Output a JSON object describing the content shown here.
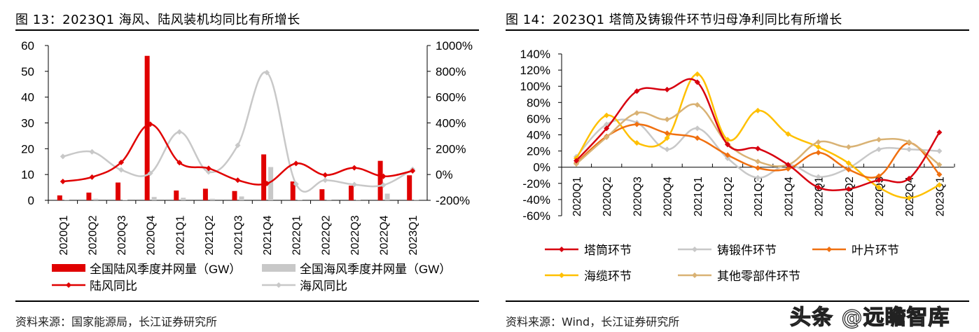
{
  "left": {
    "title": "图 13：2023Q1 海风、陆风装机均同比有所增长",
    "source": "资料来源：国家能源局，长江证券研究所"
  },
  "right": {
    "title": "图 14：2023Q1 塔筒及铸锻件环节归母净利同比有所增长",
    "source": "资料来源：Wind，长江证券研究所"
  },
  "watermark": "头条 @远瞻智库",
  "chart_data": [
    {
      "type": "bar+line",
      "categories": [
        "2020Q1",
        "2020Q2",
        "2020Q3",
        "2020Q4",
        "2021Q1",
        "2021Q2",
        "2021Q3",
        "2021Q4",
        "2022Q1",
        "2022Q2",
        "2022Q3",
        "2022Q4",
        "2023Q1"
      ],
      "ylim": [
        0,
        60
      ],
      "yticks": [
        "0",
        "10",
        "20",
        "30",
        "40",
        "50",
        "60"
      ],
      "y2lim": [
        -200,
        1000
      ],
      "y2ticks": [
        "-200%",
        "0%",
        "200%",
        "400%",
        "600%",
        "800%",
        "1000%"
      ],
      "legend_position": "bottom",
      "series": [
        {
          "name": "全国陆风季度并网量（GW）",
          "kind": "bar",
          "axis": "left",
          "color": "#e00000",
          "values": [
            1.9,
            3.0,
            6.9,
            56.0,
            3.8,
            4.5,
            3.6,
            17.8,
            7.3,
            4.3,
            5.7,
            15.3,
            9.7
          ]
        },
        {
          "name": "全国海风季度并网量（GW）",
          "kind": "bar",
          "axis": "left",
          "color": "#c8c8c8",
          "values": [
            0.1,
            0.6,
            0.2,
            1.3,
            1.0,
            0.6,
            1.5,
            12.9,
            0.1,
            0.3,
            0.1,
            2.6,
            0.3
          ]
        },
        {
          "name": "陆风同比",
          "kind": "line",
          "axis": "right",
          "color": "#e00000",
          "values": [
            -54,
            -20,
            94,
            390,
            92,
            48,
            -44,
            -70,
            86,
            -4,
            52,
            -14,
            28
          ]
        },
        {
          "name": "海风同比",
          "kind": "line",
          "axis": "right",
          "color": "#c8c8c8",
          "values": [
            140,
            176,
            36,
            10,
            330,
            20,
            226,
            790,
            -74,
            -44,
            -78,
            -82,
            40
          ]
        }
      ]
    },
    {
      "type": "line",
      "categories": [
        "2020Q1",
        "2020Q2",
        "2020Q3",
        "2020Q4",
        "2021Q1",
        "2021Q2",
        "2021Q3",
        "2021Q4",
        "2022Q1",
        "2022Q2",
        "2022Q3",
        "2022Q4",
        "2023Q1"
      ],
      "ylim": [
        -60,
        140
      ],
      "yticks": [
        "-60%",
        "-40%",
        "-20%",
        "0%",
        "20%",
        "40%",
        "60%",
        "80%",
        "100%",
        "120%",
        "140%"
      ],
      "legend_position": "bottom",
      "series": [
        {
          "name": "塔筒环节",
          "color": "#d7000f",
          "values": [
            8,
            48,
            94,
            96,
            105,
            28,
            23,
            3,
            -25,
            -27,
            -16,
            -14,
            43
          ]
        },
        {
          "name": "铸锻件环节",
          "color": "#c8c8c8",
          "values": [
            13,
            53,
            55,
            22,
            48,
            11,
            -13,
            3,
            -12,
            -1,
            22,
            22,
            20
          ]
        },
        {
          "name": "叶片环节",
          "color": "#f07010",
          "values": [
            5,
            38,
            53,
            42,
            36,
            15,
            -1,
            -2,
            18,
            -3,
            -11,
            30,
            -9
          ]
        },
        {
          "name": "海缆环节",
          "color": "#ffc000",
          "values": [
            11,
            64,
            30,
            36,
            115,
            34,
            70,
            41,
            25,
            5,
            -25,
            -38,
            -22
          ]
        },
        {
          "name": "其他零部件环节",
          "color": "#d9b274",
          "values": [
            4,
            37,
            67,
            59,
            77,
            29,
            7,
            3,
            31,
            25,
            34,
            31,
            3
          ]
        }
      ]
    }
  ]
}
